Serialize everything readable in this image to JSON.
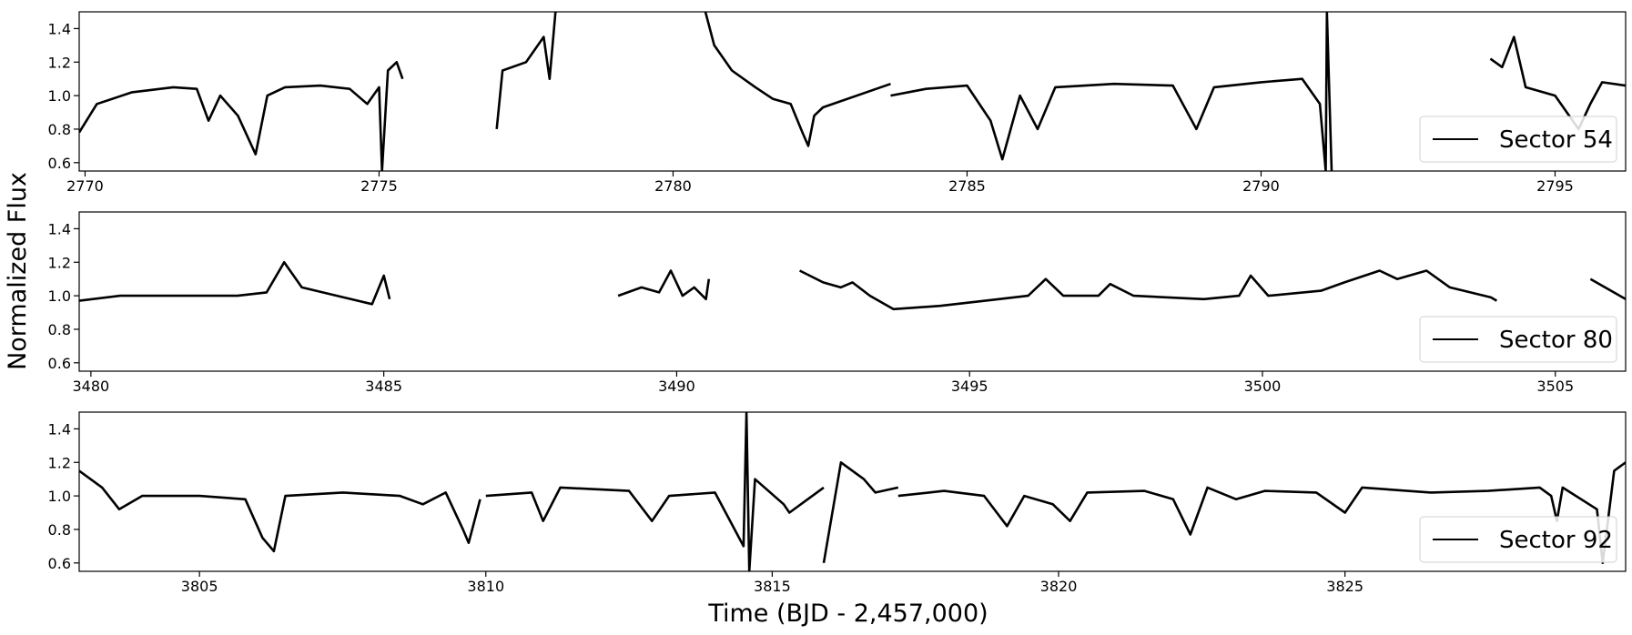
{
  "figure": {
    "ylabel": "Normalized Flux",
    "xlabel": "Time (BJD - 2,457,000)"
  },
  "chart_data": [
    {
      "type": "line",
      "legend": "Sector 54",
      "legend_position": "lower right",
      "xlim": [
        2769.9,
        2796.2
      ],
      "ylim": [
        0.55,
        1.5
      ],
      "xticks": [
        2770,
        2775,
        2780,
        2785,
        2790,
        2795
      ],
      "yticks": [
        0.6,
        0.8,
        1.0,
        1.2,
        1.4
      ],
      "grid": false,
      "series": [
        {
          "name": "Sector 54",
          "color": "#000000",
          "segments": [
            [
              [
                2769.9,
                0.78
              ],
              [
                2770.2,
                0.95
              ],
              [
                2770.8,
                1.02
              ],
              [
                2771.5,
                1.05
              ],
              [
                2771.9,
                1.04
              ],
              [
                2772.1,
                0.85
              ],
              [
                2772.3,
                1.0
              ],
              [
                2772.6,
                0.88
              ],
              [
                2772.9,
                0.65
              ],
              [
                2773.1,
                1.0
              ],
              [
                2773.4,
                1.05
              ],
              [
                2774.0,
                1.06
              ],
              [
                2774.5,
                1.04
              ],
              [
                2774.8,
                0.95
              ],
              [
                2775.0,
                1.05
              ],
              [
                2775.05,
                0.55
              ],
              [
                2775.15,
                1.15
              ],
              [
                2775.3,
                1.2
              ],
              [
                2775.4,
                1.1
              ]
            ],
            [
              [
                2777.0,
                0.8
              ],
              [
                2777.1,
                1.15
              ],
              [
                2777.5,
                1.2
              ],
              [
                2777.8,
                1.35
              ],
              [
                2777.9,
                1.1
              ],
              [
                2778.0,
                1.5
              ]
            ],
            [
              [
                2780.55,
                1.5
              ],
              [
                2780.7,
                1.3
              ],
              [
                2781.0,
                1.15
              ],
              [
                2781.4,
                1.05
              ],
              [
                2781.7,
                0.98
              ],
              [
                2782.0,
                0.95
              ],
              [
                2782.2,
                0.78
              ],
              [
                2782.3,
                0.7
              ],
              [
                2782.4,
                0.88
              ],
              [
                2782.55,
                0.93
              ],
              [
                2783.7,
                1.07
              ]
            ],
            [
              [
                2783.7,
                1.0
              ],
              [
                2784.3,
                1.04
              ],
              [
                2785.0,
                1.06
              ],
              [
                2785.4,
                0.85
              ],
              [
                2785.6,
                0.62
              ],
              [
                2785.9,
                1.0
              ],
              [
                2786.2,
                0.8
              ],
              [
                2786.5,
                1.05
              ],
              [
                2787.5,
                1.07
              ],
              [
                2788.5,
                1.06
              ],
              [
                2788.9,
                0.8
              ],
              [
                2789.2,
                1.05
              ],
              [
                2790.0,
                1.08
              ],
              [
                2790.7,
                1.1
              ],
              [
                2791.0,
                0.95
              ],
              [
                2791.1,
                0.55
              ],
              [
                2791.12,
                1.5
              ],
              [
                2791.2,
                0.55
              ]
            ],
            [
              [
                2793.9,
                1.22
              ],
              [
                2794.1,
                1.17
              ],
              [
                2794.3,
                1.35
              ],
              [
                2794.5,
                1.05
              ],
              [
                2795.0,
                1.0
              ],
              [
                2795.4,
                0.8
              ],
              [
                2795.6,
                0.95
              ],
              [
                2795.8,
                1.08
              ],
              [
                2796.2,
                1.06
              ]
            ]
          ]
        }
      ]
    },
    {
      "type": "line",
      "legend": "Sector 80",
      "legend_position": "lower right",
      "xlim": [
        3479.8,
        3506.2
      ],
      "ylim": [
        0.55,
        1.5
      ],
      "xticks": [
        3480,
        3485,
        3490,
        3495,
        3500,
        3505
      ],
      "yticks": [
        0.6,
        0.8,
        1.0,
        1.2,
        1.4
      ],
      "grid": false,
      "series": [
        {
          "name": "Sector 80",
          "color": "#000000",
          "segments": [
            [
              [
                3479.8,
                0.97
              ],
              [
                3480.5,
                1.0
              ],
              [
                3481.5,
                1.0
              ],
              [
                3482.5,
                1.0
              ],
              [
                3483.0,
                1.02
              ],
              [
                3483.3,
                1.2
              ],
              [
                3483.6,
                1.05
              ],
              [
                3484.2,
                1.0
              ],
              [
                3484.8,
                0.95
              ],
              [
                3485.0,
                1.12
              ],
              [
                3485.1,
                0.98
              ]
            ],
            [
              [
                3489.0,
                1.0
              ],
              [
                3489.4,
                1.05
              ],
              [
                3489.7,
                1.02
              ],
              [
                3489.9,
                1.15
              ],
              [
                3490.1,
                1.0
              ],
              [
                3490.3,
                1.05
              ],
              [
                3490.5,
                0.98
              ],
              [
                3490.55,
                1.1
              ]
            ],
            [
              [
                3492.1,
                1.15
              ],
              [
                3492.5,
                1.08
              ],
              [
                3492.8,
                1.05
              ],
              [
                3493.0,
                1.08
              ],
              [
                3493.3,
                1.0
              ],
              [
                3493.7,
                0.92
              ],
              [
                3494.5,
                0.94
              ],
              [
                3495.5,
                0.98
              ],
              [
                3496.0,
                1.0
              ],
              [
                3496.3,
                1.1
              ],
              [
                3496.6,
                1.0
              ],
              [
                3497.2,
                1.0
              ],
              [
                3497.4,
                1.07
              ],
              [
                3497.8,
                1.0
              ],
              [
                3499.0,
                0.98
              ],
              [
                3499.6,
                1.0
              ],
              [
                3499.8,
                1.12
              ],
              [
                3500.1,
                1.0
              ],
              [
                3501.0,
                1.03
              ],
              [
                3501.4,
                1.08
              ],
              [
                3502.0,
                1.15
              ],
              [
                3502.3,
                1.1
              ],
              [
                3502.8,
                1.15
              ],
              [
                3503.2,
                1.05
              ],
              [
                3503.9,
                0.99
              ],
              [
                3504.0,
                0.97
              ]
            ],
            [
              [
                3505.6,
                1.1
              ],
              [
                3506.2,
                0.98
              ]
            ]
          ]
        }
      ]
    },
    {
      "type": "line",
      "legend": "Sector 92",
      "legend_position": "lower right",
      "xlim": [
        3802.9,
        3829.9
      ],
      "ylim": [
        0.55,
        1.5
      ],
      "xticks": [
        3805,
        3810,
        3815,
        3820,
        3825
      ],
      "yticks": [
        0.6,
        0.8,
        1.0,
        1.2,
        1.4
      ],
      "grid": false,
      "series": [
        {
          "name": "Sector 92",
          "color": "#000000",
          "segments": [
            [
              [
                3802.9,
                1.15
              ],
              [
                3803.3,
                1.05
              ],
              [
                3803.6,
                0.92
              ],
              [
                3804.0,
                1.0
              ],
              [
                3805.0,
                1.0
              ],
              [
                3805.8,
                0.98
              ],
              [
                3806.1,
                0.75
              ],
              [
                3806.3,
                0.67
              ],
              [
                3806.5,
                1.0
              ],
              [
                3807.5,
                1.02
              ],
              [
                3808.5,
                1.0
              ],
              [
                3808.9,
                0.95
              ],
              [
                3809.3,
                1.02
              ],
              [
                3809.6,
                0.8
              ],
              [
                3809.7,
                0.72
              ],
              [
                3809.9,
                0.98
              ]
            ],
            [
              [
                3810.0,
                1.0
              ],
              [
                3810.8,
                1.02
              ],
              [
                3811.0,
                0.85
              ],
              [
                3811.3,
                1.05
              ],
              [
                3812.5,
                1.03
              ],
              [
                3812.9,
                0.85
              ],
              [
                3813.2,
                1.0
              ],
              [
                3814.0,
                1.02
              ],
              [
                3814.5,
                0.7
              ],
              [
                3814.55,
                1.5
              ],
              [
                3814.6,
                0.55
              ],
              [
                3814.7,
                1.1
              ],
              [
                3815.2,
                0.95
              ],
              [
                3815.3,
                0.9
              ],
              [
                3815.9,
                1.05
              ]
            ],
            [
              [
                3815.9,
                0.6
              ],
              [
                3816.2,
                1.2
              ],
              [
                3816.6,
                1.1
              ],
              [
                3816.8,
                1.02
              ],
              [
                3817.2,
                1.05
              ]
            ],
            [
              [
                3817.2,
                1.0
              ],
              [
                3818.0,
                1.03
              ],
              [
                3818.7,
                1.0
              ],
              [
                3819.1,
                0.82
              ],
              [
                3819.4,
                1.0
              ],
              [
                3819.9,
                0.95
              ],
              [
                3820.2,
                0.85
              ],
              [
                3820.5,
                1.02
              ],
              [
                3821.5,
                1.03
              ],
              [
                3822.0,
                0.98
              ],
              [
                3822.3,
                0.77
              ],
              [
                3822.6,
                1.05
              ],
              [
                3823.1,
                0.98
              ],
              [
                3823.6,
                1.03
              ],
              [
                3824.5,
                1.02
              ],
              [
                3825.0,
                0.9
              ],
              [
                3825.3,
                1.05
              ],
              [
                3826.5,
                1.02
              ],
              [
                3827.5,
                1.03
              ],
              [
                3828.4,
                1.05
              ],
              [
                3828.6,
                1.0
              ],
              [
                3828.7,
                0.85
              ],
              [
                3828.8,
                1.05
              ],
              [
                3829.4,
                0.92
              ],
              [
                3829.5,
                0.6
              ],
              [
                3829.7,
                1.15
              ],
              [
                3829.9,
                1.2
              ]
            ]
          ]
        }
      ]
    }
  ]
}
